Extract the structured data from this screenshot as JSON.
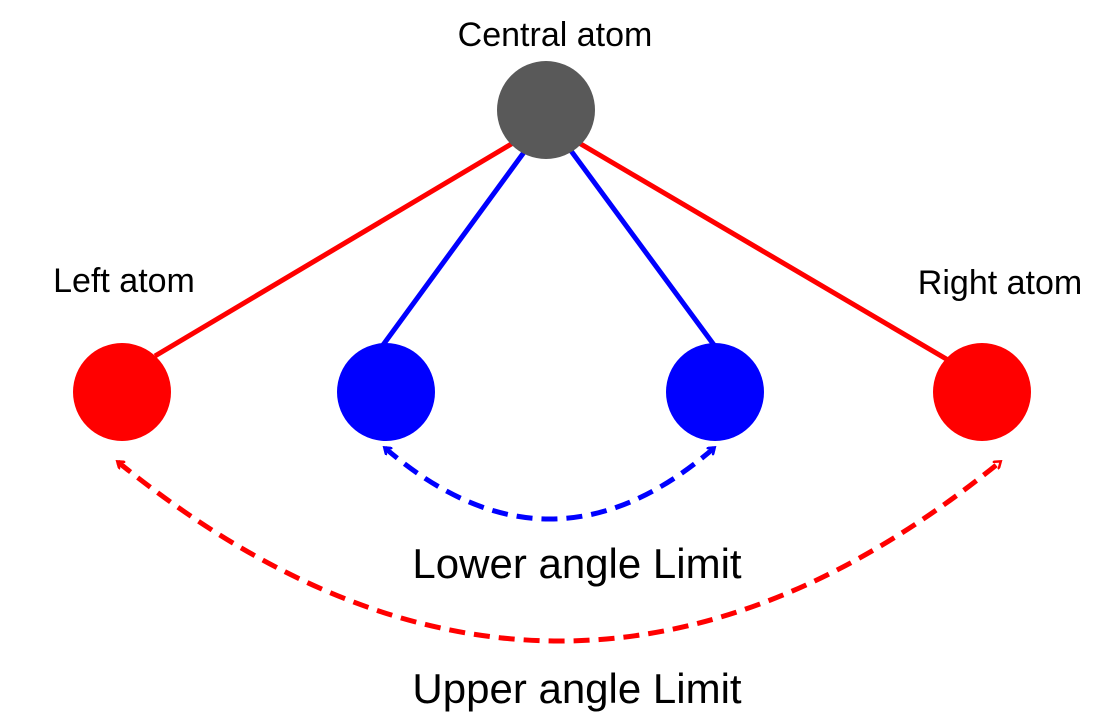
{
  "labels": {
    "central": "Central atom",
    "left": "Left atom",
    "right": "Right atom",
    "lower_limit": "Lower angle Limit",
    "upper_limit": "Upper angle Limit"
  },
  "colors": {
    "central_atom": "#595959",
    "outer_atoms_bonds": "#ff0000",
    "inner_atoms_bonds": "#0000ff",
    "upper_arrow": "#ff0000",
    "lower_arrow": "#0000ff"
  }
}
